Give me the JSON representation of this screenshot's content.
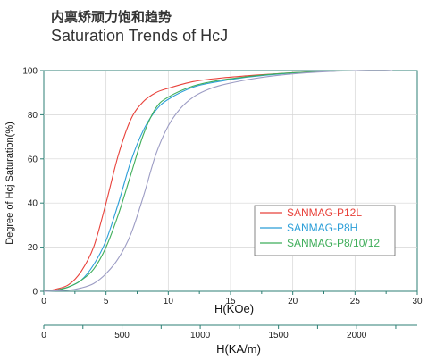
{
  "page": {
    "title_cn": "内禀矫顽力饱和趋势",
    "title_en": "Saturation Trends of HcJ"
  },
  "chart_data": {
    "type": "line",
    "xlabel": "H(KOe)",
    "ylabel": "Degree of Hcj Saturation(%)",
    "xlim": [
      0,
      30
    ],
    "ylim": [
      0,
      100
    ],
    "x_ticks": [
      "0",
      "5",
      "10",
      "15",
      "20",
      "25",
      "30"
    ],
    "y_ticks": [
      "0",
      "20",
      "40",
      "60",
      "80",
      "100"
    ],
    "secondary_axis": {
      "label": "H(KA/m)",
      "ticks": [
        "0",
        "500",
        "1000",
        "1500",
        "2000"
      ],
      "tick_values": [
        0,
        500,
        1000,
        1500,
        2000
      ]
    },
    "legend": {
      "position": "right-middle"
    },
    "series": [
      {
        "name": "SANMAG-P12L",
        "color": "#e8413a",
        "x": [
          0,
          1,
          2,
          3,
          4,
          5,
          6,
          7,
          8,
          9,
          10,
          12,
          14,
          16,
          18,
          20,
          22,
          25,
          28
        ],
        "y": [
          0,
          1,
          3,
          9,
          20,
          40,
          62,
          78,
          86,
          90,
          92,
          95,
          96.5,
          97.5,
          98.3,
          99,
          99.5,
          100,
          100
        ]
      },
      {
        "name": "SANMAG-P8H",
        "color": "#2a9ed8",
        "x": [
          0,
          1,
          2,
          3,
          4,
          5,
          6,
          7,
          8,
          9,
          10,
          12,
          14,
          16,
          18,
          20,
          22,
          25,
          28
        ],
        "y": [
          0,
          0.5,
          2,
          5,
          12,
          23,
          40,
          59,
          73,
          82,
          87,
          92.5,
          95,
          96.8,
          98,
          98.9,
          99.5,
          100,
          100
        ]
      },
      {
        "name": "SANMAG-P8/10/12",
        "color": "#3fae5a",
        "x": [
          0,
          1,
          2,
          3,
          4,
          5,
          6,
          7,
          8,
          9,
          10,
          12,
          14,
          16,
          18,
          20,
          22,
          25,
          28
        ],
        "y": [
          0,
          0.5,
          2,
          5,
          10,
          20,
          35,
          53,
          71,
          83,
          88,
          93,
          95.5,
          97,
          98.2,
          99,
          99.5,
          100,
          100
        ]
      },
      {
        "name": "",
        "color": "#9c9cc4",
        "x": [
          0,
          2,
          3,
          4,
          5,
          6,
          7,
          8,
          9,
          10,
          11,
          12,
          13,
          14,
          16,
          18,
          20,
          22,
          25,
          28
        ],
        "y": [
          0,
          0.5,
          1.5,
          3.5,
          8,
          15,
          26,
          43,
          62,
          75,
          83,
          88,
          91,
          93,
          95.5,
          97.3,
          98.5,
          99.3,
          100,
          100
        ]
      }
    ]
  }
}
